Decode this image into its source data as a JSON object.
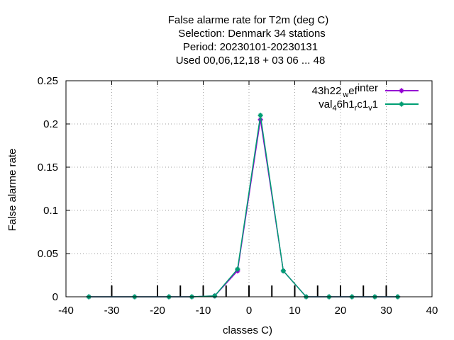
{
  "chart_data": {
    "type": "line",
    "title_lines": [
      "False alarme rate  for T2m (deg C)",
      "Selection: Denmark     34 stations",
      "Period: 20230101-20230131",
      "Used  00,06,12,18  + 03 06 ... 48"
    ],
    "xlabel": "classes C)",
    "ylabel": "False alarme rate",
    "xlim": [
      -40,
      40
    ],
    "ylim": [
      0,
      0.25
    ],
    "xticks": [
      -40,
      -30,
      -20,
      -10,
      0,
      10,
      20,
      30,
      40
    ],
    "yticks": [
      0,
      0.05,
      0.1,
      0.15,
      0.2,
      0.25
    ],
    "xtick_labels": [
      "-40",
      "-30",
      "-20",
      "-10",
      "0",
      "10",
      "20",
      "30",
      "40"
    ],
    "ytick_labels": [
      "0",
      "0.05",
      "0.1",
      "0.15",
      "0.2",
      "0.25"
    ],
    "class_marks": [
      -30,
      -20,
      -15,
      -10,
      -5,
      0,
      5,
      10,
      15,
      20,
      25,
      30
    ],
    "grid": true,
    "legend_position": "top-right",
    "x": [
      -35,
      -25,
      -17.5,
      -12.5,
      -7.5,
      -2.5,
      2.5,
      7.5,
      12.5,
      17.5,
      22.5,
      27.5,
      32.5
    ],
    "series": [
      {
        "name": "43h22",
        "name_sub": "ref",
        "name_sub2": "inter",
        "name_sub2_mark": "w",
        "color": "#9400d3",
        "values": [
          0,
          0,
          0,
          0,
          0.001,
          0.03,
          0.205,
          0.03,
          0,
          0,
          0,
          0,
          0
        ]
      },
      {
        "name": "val",
        "name_sub": "4",
        "name_mid": "6h1",
        "name_sub2": "c1",
        "name_sub2_mark": "r",
        "name_sub3": "v",
        "name_end": "1",
        "color": "#009e73",
        "values": [
          0,
          0,
          0,
          0,
          0.001,
          0.032,
          0.21,
          0.03,
          0,
          0,
          0,
          0,
          0
        ]
      }
    ]
  }
}
